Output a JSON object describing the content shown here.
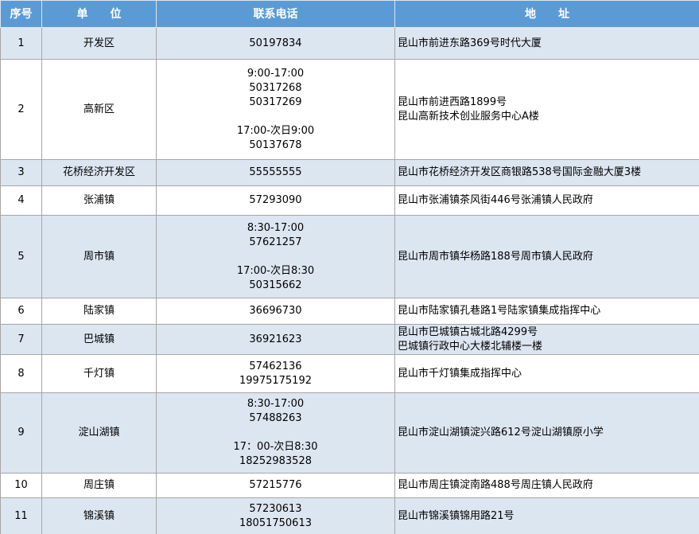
{
  "table": {
    "headers": [
      "序号",
      "单　　位",
      "联系电话",
      "地　　址"
    ],
    "rows": [
      {
        "no": "1",
        "unit": "开发区",
        "phone": [
          [
            "50197834"
          ]
        ],
        "address": [
          "昆山市前进东路369号时代大厦"
        ]
      },
      {
        "no": "2",
        "unit": "高新区",
        "phone": [
          [
            "9:00-17:00",
            "50317268",
            "50317269"
          ],
          [
            "17:00-次日9:00",
            "50137678"
          ]
        ],
        "address": [
          "昆山市前进西路1899号",
          "昆山高新技术创业服务中心A楼"
        ]
      },
      {
        "no": "3",
        "unit": "花桥经济开发区",
        "phone": [
          [
            "55555555"
          ]
        ],
        "address": [
          "昆山市花桥经济开发区商银路538号国际金融大厦3楼"
        ]
      },
      {
        "no": "4",
        "unit": "张浦镇",
        "phone": [
          [
            "57293090"
          ]
        ],
        "address": [
          "昆山市张浦镇茶风街446号张浦镇人民政府"
        ]
      },
      {
        "no": "5",
        "unit": "周市镇",
        "phone": [
          [
            "8:30-17:00",
            "57621257"
          ],
          [
            "17:00-次日8:30",
            "50315662"
          ]
        ],
        "address": [
          "昆山市周市镇华杨路188号周市镇人民政府"
        ]
      },
      {
        "no": "6",
        "unit": "陆家镇",
        "phone": [
          [
            "36696730"
          ]
        ],
        "address": [
          "昆山市陆家镇孔巷路1号陆家镇集成指挥中心"
        ]
      },
      {
        "no": "7",
        "unit": "巴城镇",
        "phone": [
          [
            "36921623"
          ]
        ],
        "address": [
          "昆山市巴城镇古城北路4299号",
          "巴城镇行政中心大楼北辅楼一楼"
        ]
      },
      {
        "no": "8",
        "unit": "千灯镇",
        "phone": [
          [
            "57462136",
            "19975175192"
          ]
        ],
        "address": [
          "昆山市千灯镇集成指挥中心"
        ]
      },
      {
        "no": "9",
        "unit": "淀山湖镇",
        "phone": [
          [
            "8:30-17:00",
            "57488263"
          ],
          [
            "17：00-次日8:30",
            "18252983528"
          ]
        ],
        "address": [
          "昆山市淀山湖镇淀兴路612号淀山湖镇原小学"
        ]
      },
      {
        "no": "10",
        "unit": "周庄镇",
        "phone": [
          [
            "57215776"
          ]
        ],
        "address": [
          "昆山市周庄镇淀南路488号周庄镇人民政府"
        ]
      },
      {
        "no": "11",
        "unit": "锦溪镇",
        "phone": [
          [
            "57230613",
            "18051750613"
          ]
        ],
        "address": [
          "昆山市锦溪镇锦用路21号"
        ]
      }
    ]
  }
}
